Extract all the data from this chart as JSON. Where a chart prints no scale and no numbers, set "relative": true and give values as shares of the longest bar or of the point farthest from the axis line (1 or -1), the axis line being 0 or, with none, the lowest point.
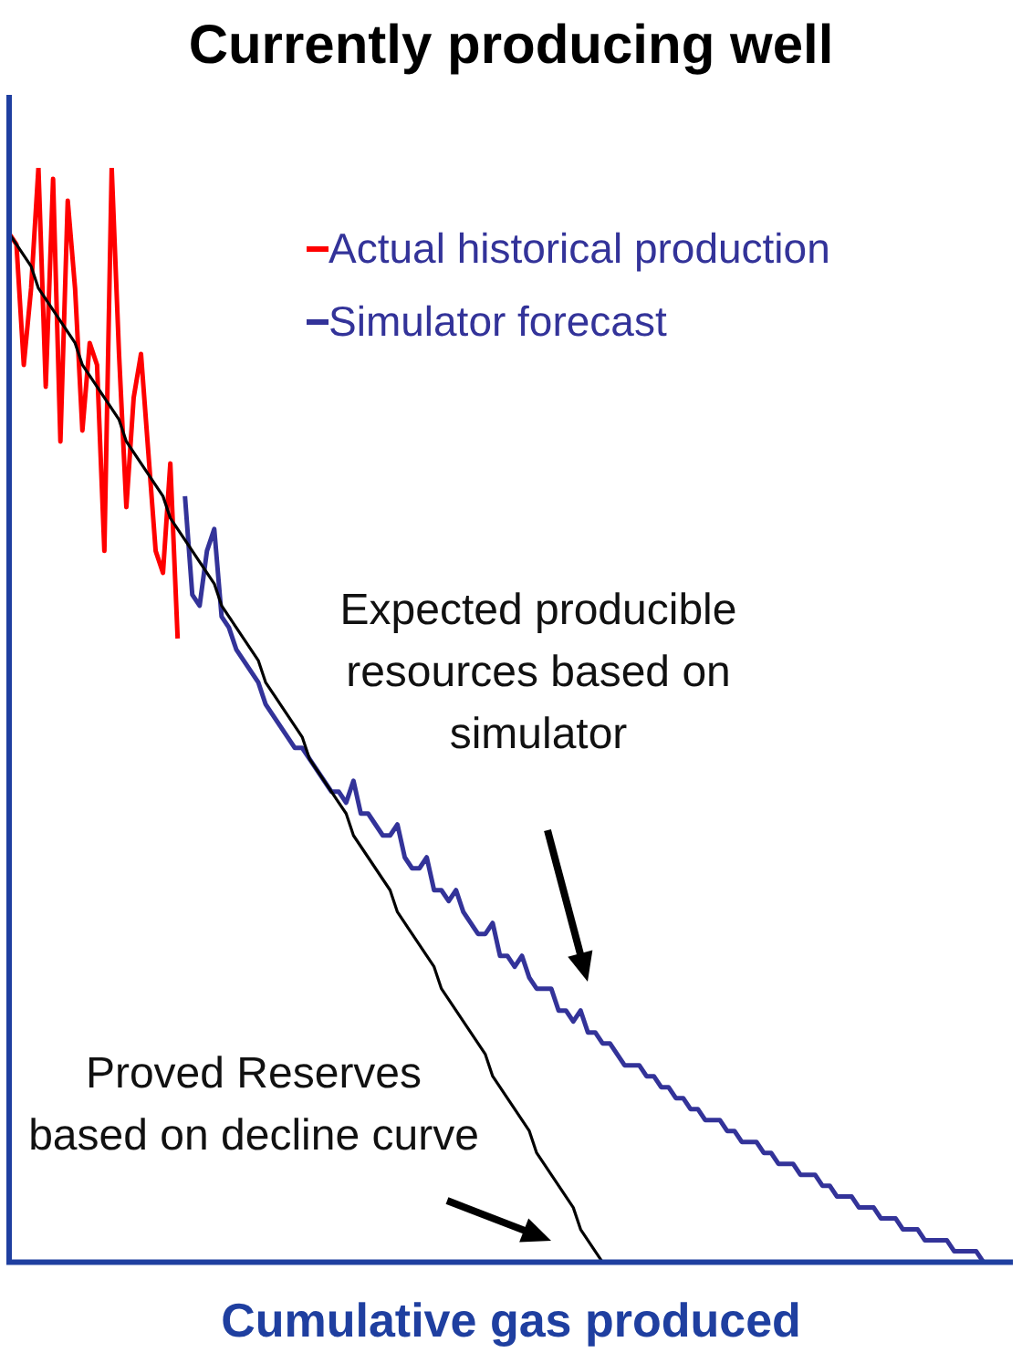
{
  "chart_data": {
    "type": "line",
    "title": "Currently producing well",
    "xlabel": "Cumulative gas produced",
    "relative": true,
    "legend": "top right",
    "marker": "none",
    "grid": false,
    "annotations": [
      "Expected producible resources based on simulator",
      "Proved Reserves based on decline curve"
    ],
    "categories": [
      null,
      null,
      null,
      null,
      null,
      null,
      null,
      null,
      null,
      null,
      null,
      null,
      null,
      null,
      null,
      null,
      null,
      null,
      null,
      null,
      null,
      null,
      null,
      null,
      null,
      null,
      null,
      null,
      null,
      null,
      null,
      null,
      null,
      null,
      null,
      null,
      null,
      null,
      null,
      null,
      null,
      null,
      null,
      null,
      null,
      null,
      null,
      null,
      null,
      null,
      null,
      null,
      null,
      null,
      null,
      null,
      null,
      null,
      null,
      null,
      null,
      null,
      null,
      null,
      null,
      null,
      null,
      null,
      null,
      null,
      null,
      null,
      null,
      null,
      null,
      null,
      null,
      null,
      null,
      null,
      null,
      null,
      null,
      null,
      null,
      null,
      null,
      null,
      null,
      null,
      null,
      null,
      null,
      null,
      null,
      null,
      null,
      null,
      null,
      null,
      null,
      null,
      null,
      null,
      null,
      null,
      null,
      null,
      null,
      null,
      null,
      null,
      null,
      null,
      null,
      null,
      null,
      null,
      null,
      null,
      null,
      null,
      null,
      null,
      null,
      null,
      null,
      null,
      null,
      null,
      null,
      null,
      null,
      null,
      null,
      null,
      null,
      null
    ],
    "series": [
      {
        "name": "Actual historical production",
        "color": "#ff0000",
        "values": [
          0.94,
          0.93,
          0.82,
          0.89,
          1.0,
          0.8,
          0.99,
          0.75,
          0.97,
          0.89,
          0.76,
          0.84,
          0.82,
          0.65,
          1.0,
          0.83,
          0.69,
          0.79,
          0.83,
          0.74,
          0.65,
          0.63,
          0.73,
          0.57,
          null,
          null,
          null,
          null,
          null,
          null,
          null,
          null,
          null,
          null,
          null,
          null,
          null,
          null,
          null,
          null,
          null,
          null,
          null,
          null,
          null,
          null,
          null,
          null,
          null,
          null,
          null,
          null,
          null,
          null,
          null,
          null,
          null,
          null,
          null,
          null,
          null,
          null,
          null,
          null,
          null,
          null,
          null,
          null,
          null,
          null,
          null,
          null,
          null,
          null,
          null,
          null,
          null,
          null,
          null,
          null,
          null,
          null,
          null,
          null,
          null,
          null,
          null,
          null,
          null,
          null,
          null,
          null,
          null,
          null,
          null,
          null,
          null,
          null,
          null,
          null,
          null,
          null,
          null,
          null,
          null,
          null,
          null,
          null,
          null,
          null,
          null,
          null,
          null,
          null,
          null,
          null,
          null,
          null,
          null,
          null,
          null,
          null,
          null,
          null,
          null,
          null,
          null,
          null,
          null,
          null,
          null,
          null,
          null,
          null,
          null,
          null,
          null,
          null
        ]
      },
      {
        "name": "Simulator forecast",
        "color": "#333399",
        "values": [
          null,
          null,
          null,
          null,
          null,
          null,
          null,
          null,
          null,
          null,
          null,
          null,
          null,
          null,
          null,
          null,
          null,
          null,
          null,
          null,
          null,
          null,
          null,
          null,
          0.7,
          0.61,
          0.6,
          0.65,
          0.67,
          0.59,
          0.58,
          0.56,
          0.55,
          0.54,
          0.53,
          0.51,
          0.5,
          0.49,
          0.48,
          0.47,
          0.47,
          0.46,
          0.45,
          0.44,
          0.43,
          0.43,
          0.42,
          0.44,
          0.41,
          0.41,
          0.4,
          0.39,
          0.39,
          0.4,
          0.37,
          0.36,
          0.36,
          0.37,
          0.34,
          0.34,
          0.33,
          0.34,
          0.32,
          0.31,
          0.3,
          0.3,
          0.31,
          0.28,
          0.28,
          0.27,
          0.28,
          0.26,
          0.25,
          0.25,
          0.25,
          0.23,
          0.23,
          0.22,
          0.23,
          0.21,
          0.21,
          0.2,
          0.2,
          0.19,
          0.18,
          0.18,
          0.18,
          0.17,
          0.17,
          0.16,
          0.16,
          0.15,
          0.15,
          0.14,
          0.14,
          0.13,
          0.13,
          0.13,
          0.12,
          0.12,
          0.11,
          0.11,
          0.11,
          0.1,
          0.1,
          0.09,
          0.09,
          0.09,
          0.08,
          0.08,
          0.08,
          0.07,
          0.07,
          0.06,
          0.06,
          0.06,
          0.05,
          0.05,
          0.05,
          0.04,
          0.04,
          0.04,
          0.03,
          0.03,
          0.03,
          0.02,
          0.02,
          0.02,
          0.02,
          0.01,
          0.01,
          0.01,
          0.01,
          0.0,
          0,
          null,
          null,
          null
        ]
      },
      {
        "color": "#000000",
        "values": [
          0.94,
          0.93,
          0.92,
          0.91,
          0.89,
          0.88,
          0.87,
          0.86,
          0.85,
          0.84,
          0.82,
          0.81,
          0.8,
          0.79,
          0.78,
          0.77,
          0.75,
          0.74,
          0.73,
          0.72,
          0.71,
          0.7,
          0.68,
          0.67,
          0.66,
          0.65,
          0.64,
          0.63,
          0.62,
          0.6,
          0.59,
          0.58,
          0.57,
          0.56,
          0.55,
          0.53,
          0.52,
          0.51,
          0.5,
          0.49,
          0.48,
          0.46,
          0.45,
          0.44,
          0.43,
          0.42,
          0.41,
          0.39,
          0.38,
          0.37,
          0.36,
          0.35,
          0.34,
          0.32,
          0.31,
          0.3,
          0.29,
          0.28,
          0.27,
          0.25,
          0.24,
          0.23,
          0.22,
          0.21,
          0.2,
          0.19,
          0.17,
          0.16,
          0.15,
          0.14,
          0.13,
          0.12,
          0.1,
          0.09,
          0.08,
          0.07,
          0.06,
          0.05,
          0.03,
          0.02,
          0.01,
          0.0,
          null,
          null,
          null,
          null,
          null,
          null,
          null,
          null,
          null,
          null,
          null,
          null,
          null,
          null,
          null,
          null,
          null,
          null,
          null,
          null,
          null,
          null,
          null,
          null,
          null,
          null,
          null,
          null,
          null,
          null,
          null,
          null,
          null,
          null,
          null,
          null,
          null,
          null,
          null,
          null,
          null,
          null,
          null,
          null,
          null,
          null,
          null,
          null,
          null,
          null,
          null,
          null,
          null,
          null,
          null,
          null
        ]
      }
    ]
  }
}
